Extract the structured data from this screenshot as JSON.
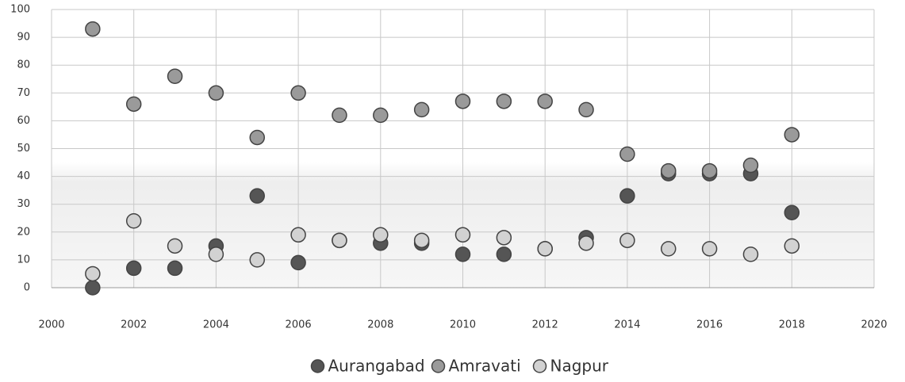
{
  "chart_data": {
    "type": "scatter",
    "x": [
      2001,
      2002,
      2003,
      2004,
      2005,
      2006,
      2007,
      2008,
      2009,
      2010,
      2011,
      2012,
      2013,
      2014,
      2015,
      2016,
      2017,
      2018
    ],
    "series": [
      {
        "name": "Aurangabad",
        "color": "#555555",
        "values": [
          0,
          7,
          7,
          15,
          33,
          9,
          17,
          16,
          16,
          12,
          12,
          14,
          18,
          33,
          41,
          41,
          41,
          27
        ]
      },
      {
        "name": "Amravati",
        "color": "#9a9a9a",
        "values": [
          93,
          66,
          76,
          70,
          54,
          70,
          62,
          62,
          64,
          67,
          67,
          67,
          64,
          48,
          42,
          42,
          44,
          55
        ]
      },
      {
        "name": "Nagpur",
        "color": "#d2d2d2",
        "values": [
          5,
          24,
          15,
          12,
          10,
          19,
          17,
          19,
          17,
          19,
          18,
          14,
          16,
          17,
          14,
          14,
          12,
          15
        ]
      }
    ],
    "xlim": [
      2000,
      2020
    ],
    "xticks": [
      2000,
      2002,
      2004,
      2006,
      2008,
      2010,
      2012,
      2014,
      2016,
      2018,
      2020
    ],
    "ylim": [
      0,
      100
    ],
    "yticks": [
      0,
      10,
      20,
      30,
      40,
      50,
      60,
      70,
      80,
      90,
      100
    ],
    "grid": true,
    "legend": "bottom"
  }
}
